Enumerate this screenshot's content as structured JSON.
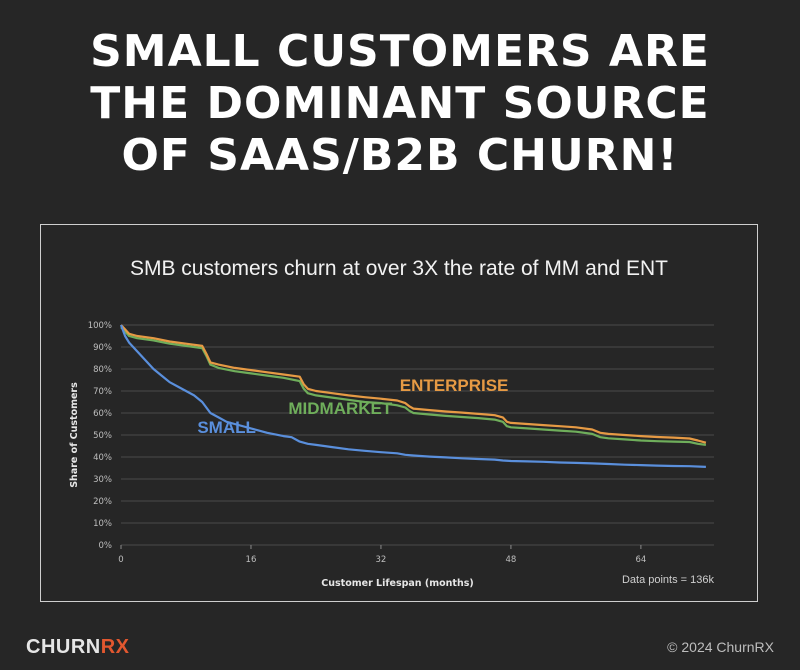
{
  "headline": {
    "line1": "SMALL CUSTOMERS ARE",
    "line2": "THE DOMINANT SOURCE",
    "line3": "OF SAAS/B2B CHURN!"
  },
  "footer": {
    "logo_part1": "CHURN",
    "logo_part2": "RX",
    "copyright": "© 2024 ChurnRX"
  },
  "chart_data": {
    "type": "line",
    "title": "SMB customers churn at over 3X the rate of MM and ENT",
    "xlabel": "Customer Lifespan (months)",
    "ylabel": "Share of Customers",
    "xlim": [
      0,
      73
    ],
    "ylim": [
      0,
      100
    ],
    "x_ticks": [
      0,
      16,
      32,
      48,
      64
    ],
    "y_ticks": [
      "0%",
      "10%",
      "20%",
      "30%",
      "40%",
      "50%",
      "60%",
      "70%",
      "80%",
      "90%",
      "100%"
    ],
    "grid": true,
    "annotation": "Data points = 136k",
    "colors": {
      "small": "#5a8fdc",
      "midmarket": "#6fae5b",
      "enterprise": "#e69a44"
    },
    "series": [
      {
        "name": "SMALL",
        "x": [
          0,
          0.5,
          1,
          2,
          3,
          4,
          5,
          6,
          7,
          8,
          9,
          10,
          11,
          12,
          13,
          14,
          16,
          18,
          20,
          21,
          22,
          23,
          24,
          26,
          28,
          30,
          32,
          34,
          35,
          36,
          38,
          40,
          42,
          44,
          46,
          47,
          48,
          50,
          52,
          54,
          56,
          58,
          60,
          62,
          64,
          66,
          68,
          70,
          72
        ],
        "y": [
          100,
          95,
          92,
          88,
          84,
          80,
          77,
          74,
          72,
          70,
          68,
          65,
          60,
          58,
          56,
          55,
          53,
          51,
          49.5,
          49,
          47,
          46,
          45.5,
          44.5,
          43.5,
          42.8,
          42.2,
          41.7,
          41,
          40.7,
          40.2,
          39.8,
          39.4,
          39.1,
          38.8,
          38.4,
          38.2,
          38,
          37.8,
          37.5,
          37.3,
          37.1,
          36.8,
          36.5,
          36.3,
          36.1,
          35.9,
          35.8,
          35.5
        ]
      },
      {
        "name": "MIDMARKET",
        "x": [
          0,
          0.5,
          1,
          2,
          4,
          6,
          8,
          10,
          10.5,
          11,
          12,
          14,
          16,
          18,
          20,
          22,
          22.5,
          23,
          24,
          26,
          28,
          30,
          32,
          34,
          35,
          35.5,
          36,
          38,
          40,
          42,
          44,
          46,
          47,
          47.5,
          48,
          50,
          52,
          54,
          56,
          58,
          59,
          60,
          62,
          64,
          66,
          68,
          70,
          71,
          72
        ],
        "y": [
          99,
          97,
          95,
          94,
          93,
          91.5,
          90.5,
          89.5,
          86,
          82,
          80.5,
          79,
          78,
          77,
          76,
          74.5,
          71,
          69,
          68,
          67,
          66,
          65,
          64.5,
          63.5,
          62.5,
          61,
          60,
          59.3,
          58.7,
          58.2,
          57.7,
          57,
          56,
          54,
          53.5,
          53,
          52.5,
          52,
          51.5,
          50.5,
          49,
          48.5,
          48,
          47.5,
          47.2,
          47,
          46.8,
          46,
          45.5
        ]
      },
      {
        "name": "ENTERPRISE",
        "x": [
          0,
          0.5,
          1,
          2,
          4,
          6,
          8,
          10,
          10.5,
          11,
          12,
          14,
          16,
          18,
          20,
          22,
          22.5,
          23,
          24,
          26,
          28,
          30,
          32,
          34,
          35,
          35.5,
          36,
          38,
          40,
          42,
          44,
          46,
          47,
          47.5,
          48,
          50,
          52,
          54,
          56,
          58,
          59,
          60,
          62,
          64,
          66,
          68,
          70,
          71,
          72
        ],
        "y": [
          100,
          98,
          96,
          95,
          94,
          92.5,
          91.5,
          90.5,
          87,
          83,
          82,
          80.5,
          79.5,
          78.5,
          77.5,
          76.5,
          73,
          71,
          70,
          69,
          68,
          67.2,
          66.5,
          65.7,
          64.5,
          63,
          62,
          61.3,
          60.7,
          60.2,
          59.6,
          59,
          58,
          56,
          55.5,
          55,
          54.5,
          54,
          53.5,
          52.5,
          51,
          50.5,
          50,
          49.5,
          49.1,
          48.8,
          48.4,
          47.5,
          46.5
        ]
      }
    ],
    "labels": [
      {
        "text": "SMALL",
        "series": "small",
        "x": 13,
        "y": 51
      },
      {
        "text": "MIDMARKET",
        "series": "midmarket",
        "x": 27,
        "y": 59.5
      },
      {
        "text": "ENTERPRISE",
        "series": "enterprise",
        "x": 41,
        "y": 70
      }
    ]
  }
}
